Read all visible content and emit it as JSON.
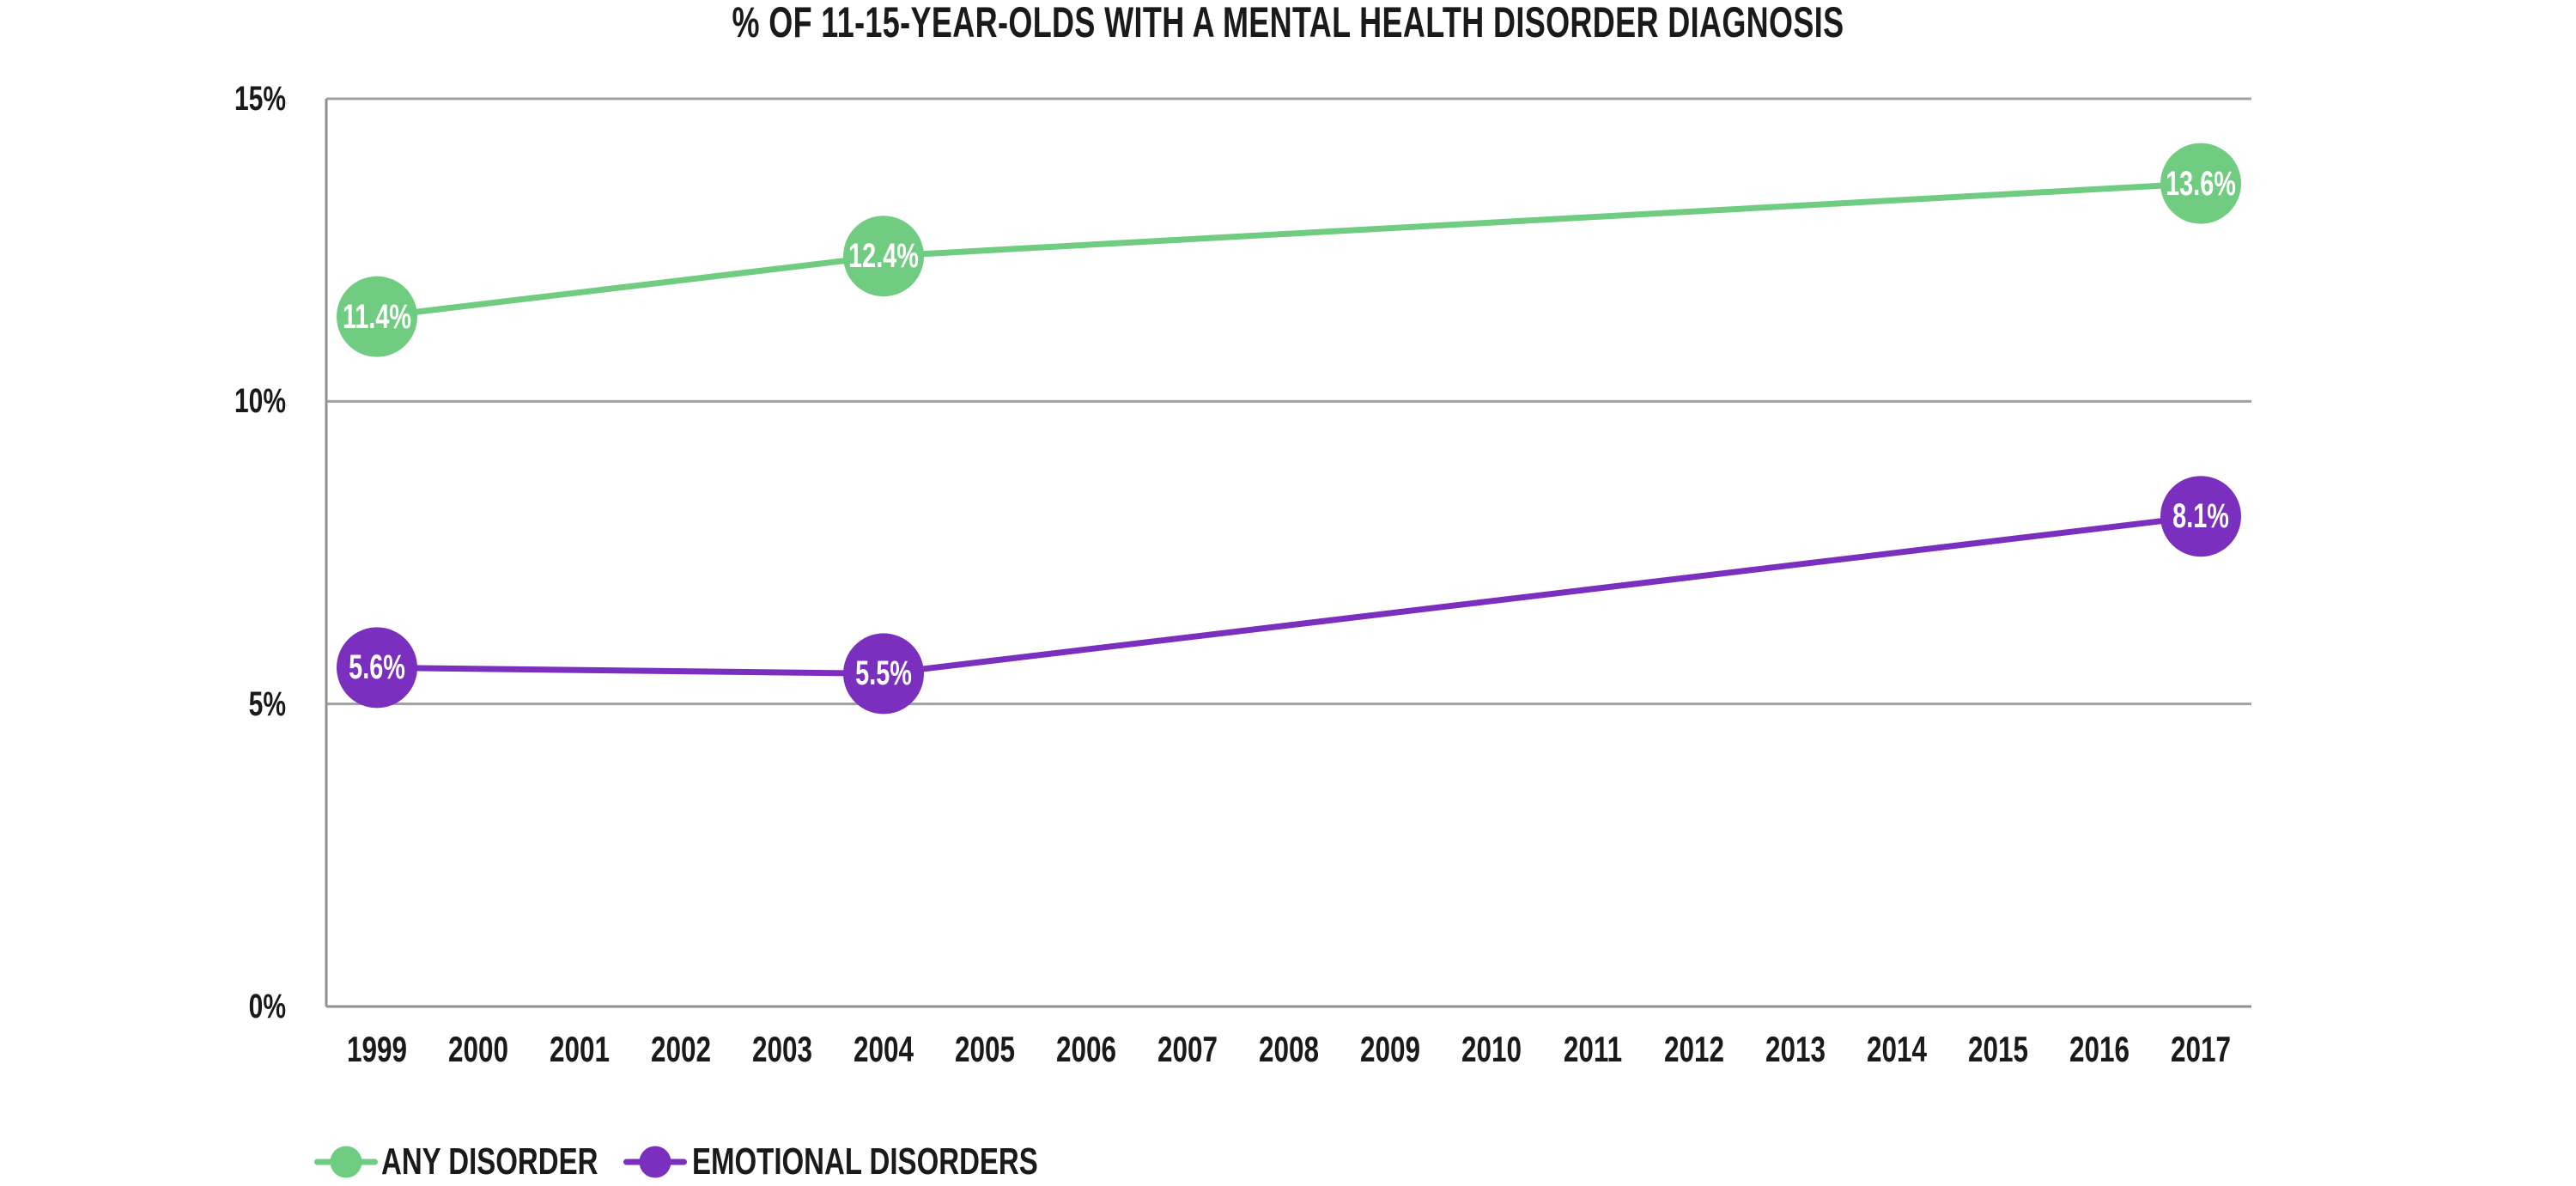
{
  "title": "% OF 11-15-YEAR-OLDS WITH A MENTAL HEALTH DISORDER DIAGNOSIS",
  "colors": {
    "any_disorder": "#70CC80",
    "emotional_disorders": "#7B2FBE",
    "grid": "#A0A0A0",
    "axis": "#909090",
    "text": "#1A1A1A",
    "point_label_text": "#FFFFFF",
    "background": "#FFFFFF"
  },
  "chart_data": {
    "type": "line",
    "title": "% OF 11-15-YEAR-OLDS WITH A MENTAL HEALTH DISORDER DIAGNOSIS",
    "categories": [
      "1999",
      "2000",
      "2001",
      "2002",
      "2003",
      "2004",
      "2005",
      "2006",
      "2007",
      "2008",
      "2009",
      "2010",
      "2011",
      "2012",
      "2013",
      "2014",
      "2015",
      "2016",
      "2017"
    ],
    "series": [
      {
        "name": "ANY DISORDER",
        "color": "#70CC80",
        "points": [
          {
            "x": "1999",
            "value": 11.4,
            "label": "11.4%"
          },
          {
            "x": "2004",
            "value": 12.4,
            "label": "12.4%"
          },
          {
            "x": "2017",
            "value": 13.6,
            "label": "13.6%"
          }
        ]
      },
      {
        "name": "EMOTIONAL DISORDERS",
        "color": "#7B2FBE",
        "points": [
          {
            "x": "1999",
            "value": 5.6,
            "label": "5.6%"
          },
          {
            "x": "2004",
            "value": 5.5,
            "label": "5.5%"
          },
          {
            "x": "2017",
            "value": 8.1,
            "label": "8.1%"
          }
        ]
      }
    ],
    "y_axis": {
      "min": 0,
      "max": 15,
      "ticks": [
        "0%",
        "5%",
        "10%",
        "15%"
      ],
      "tick_values": [
        0,
        5,
        10,
        15
      ]
    },
    "grid": "horizontal",
    "legend_position": "bottom-left",
    "legend": [
      {
        "label": "ANY DISORDER",
        "color": "#70CC80"
      },
      {
        "label": "EMOTIONAL DISORDERS",
        "color": "#7B2FBE"
      }
    ]
  }
}
